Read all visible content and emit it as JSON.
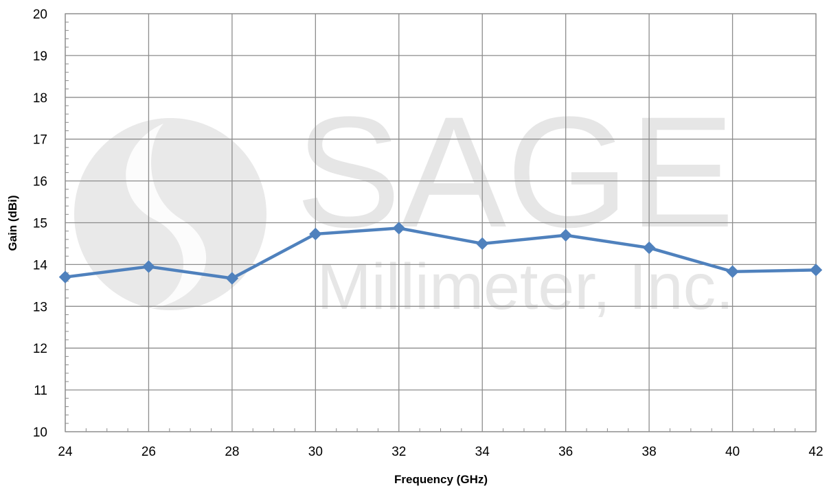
{
  "chart_data": {
    "type": "line",
    "xlabel": "Frequency (GHz)",
    "ylabel": "Gain (dBi)",
    "xlim": [
      24,
      42
    ],
    "ylim": [
      10,
      20
    ],
    "xticks": [
      24,
      26,
      28,
      30,
      32,
      34,
      36,
      38,
      40,
      42
    ],
    "yticks": [
      10,
      11,
      12,
      13,
      14,
      15,
      16,
      17,
      18,
      19,
      20
    ],
    "grid": true,
    "series": [
      {
        "x": [
          24,
          26,
          28,
          30,
          32,
          34,
          36,
          38,
          40,
          42
        ],
        "values": [
          13.7,
          13.95,
          13.67,
          14.73,
          14.87,
          14.5,
          14.7,
          14.4,
          13.83,
          13.87
        ],
        "color": "#4F81BD",
        "marker": "diamond"
      }
    ]
  },
  "watermark": {
    "line1": "SAGE",
    "line2": "Millimeter, Inc."
  }
}
